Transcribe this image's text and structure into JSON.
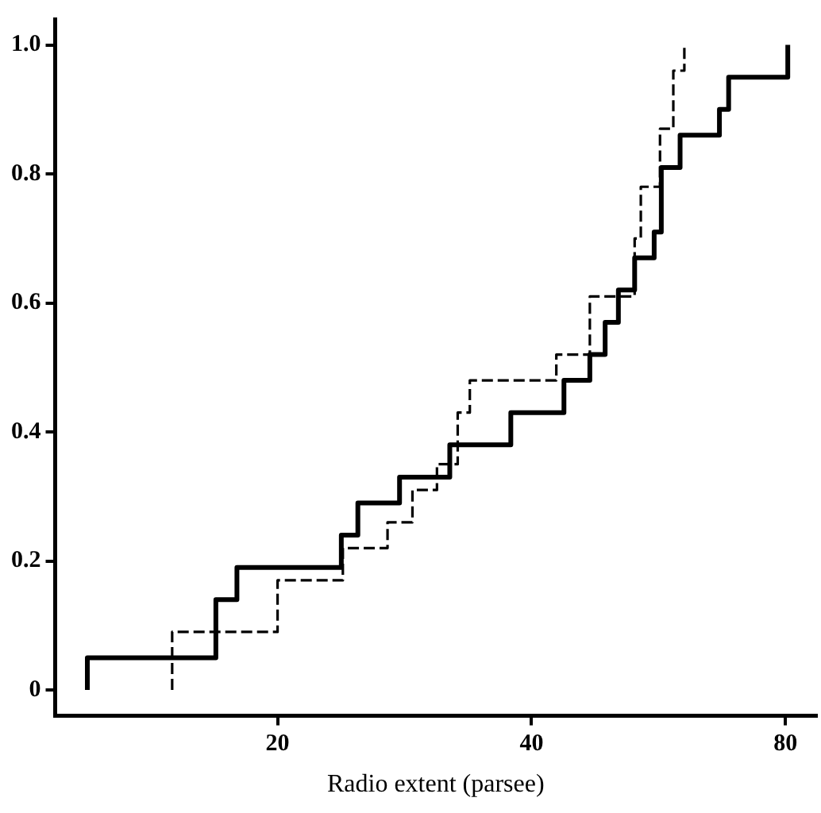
{
  "chart_data": {
    "type": "step",
    "xlabel": "Radio extent (parsee)",
    "log": "x",
    "grid": false,
    "xlim": [
      10.9,
      87
    ],
    "xticks": [
      20,
      40,
      80
    ],
    "ylim": [
      -0.04,
      1.04
    ],
    "yticks": [
      0,
      0.2,
      0.4,
      0.6,
      0.8,
      {
        "value": 1,
        "label": "1.0"
      }
    ],
    "series": [
      {
        "color": "#000000",
        "line_style": "solid",
        "x": [
          11.9,
          11.9,
          16.9,
          17.9,
          23.8,
          24.9,
          27.9,
          32.0,
          37.8,
          43.7,
          46.9,
          48.9,
          50.7,
          53.0,
          55.9,
          57.0,
          60.0,
          66.8,
          68.5,
          80.5
        ],
        "values": [
          0,
          0.05,
          0.14,
          0.19,
          0.24,
          0.29,
          0.33,
          0.38,
          0.43,
          0.48,
          0.52,
          0.57,
          0.62,
          0.67,
          0.71,
          0.81,
          0.86,
          0.9,
          0.95,
          1.0
        ]
      },
      {
        "color": "#000000",
        "line_style": "dashed",
        "x": [
          15.0,
          15.0,
          20.0,
          23.9,
          27.0,
          28.9,
          30.9,
          32.7,
          33.8,
          42.8,
          46.9,
          53.0,
          53.9,
          56.8,
          58.9,
          60.7
        ],
        "values": [
          0,
          0.09,
          0.17,
          0.22,
          0.26,
          0.31,
          0.35,
          0.43,
          0.48,
          0.52,
          0.61,
          0.7,
          0.78,
          0.87,
          0.96,
          1.0
        ]
      }
    ]
  }
}
